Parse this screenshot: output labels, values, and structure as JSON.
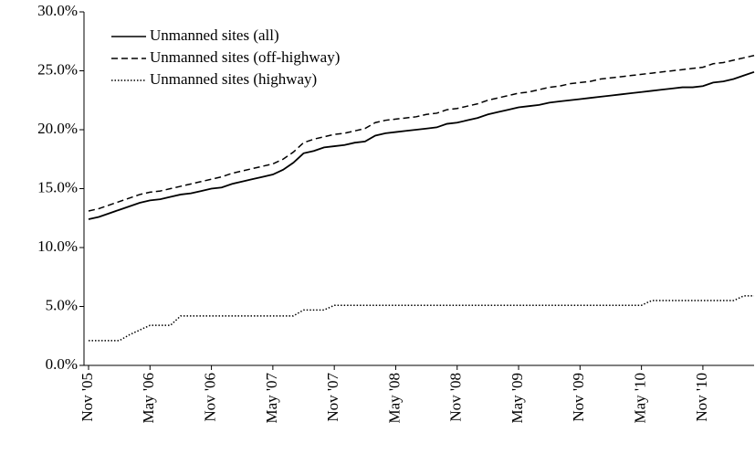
{
  "chart_data": {
    "type": "line",
    "categories": [
      "Nov '05",
      null,
      null,
      null,
      null,
      null,
      "May '06",
      null,
      null,
      null,
      null,
      null,
      "Nov '06",
      null,
      null,
      null,
      null,
      null,
      "May '07",
      null,
      null,
      null,
      null,
      null,
      "Nov '07",
      null,
      null,
      null,
      null,
      null,
      "May '08",
      null,
      null,
      null,
      null,
      null,
      "Nov '08",
      null,
      null,
      null,
      null,
      null,
      "May '09",
      null,
      null,
      null,
      null,
      null,
      "Nov '09",
      null,
      null,
      null,
      null,
      null,
      "May '10",
      null,
      null,
      null,
      null,
      null,
      "Nov '10",
      null,
      null,
      null,
      null,
      null
    ],
    "series": [
      {
        "name": "Unmanned sites (all)",
        "color": "#000000",
        "dash": "solid",
        "values": [
          12.4,
          12.6,
          12.9,
          13.2,
          13.5,
          13.8,
          14.0,
          14.1,
          14.3,
          14.5,
          14.6,
          14.8,
          15.0,
          15.1,
          15.4,
          15.6,
          15.8,
          16.0,
          16.2,
          16.6,
          17.2,
          18.0,
          18.2,
          18.5,
          18.6,
          18.7,
          18.9,
          19.0,
          19.5,
          19.7,
          19.8,
          19.9,
          20.0,
          20.1,
          20.2,
          20.5,
          20.6,
          20.8,
          21.0,
          21.3,
          21.5,
          21.7,
          21.9,
          22.0,
          22.1,
          22.3,
          22.4,
          22.5,
          22.6,
          22.7,
          22.8,
          22.9,
          23.0,
          23.1,
          23.2,
          23.3,
          23.4,
          23.5,
          23.6,
          23.6,
          23.7,
          24.0,
          24.1,
          24.3,
          24.6,
          24.9
        ]
      },
      {
        "name": "Unmanned sites (off-highway)",
        "color": "#000000",
        "dash": "dashed",
        "values": [
          13.1,
          13.3,
          13.6,
          13.9,
          14.2,
          14.5,
          14.7,
          14.8,
          15.0,
          15.2,
          15.4,
          15.6,
          15.8,
          16.0,
          16.3,
          16.5,
          16.7,
          16.9,
          17.1,
          17.5,
          18.1,
          18.9,
          19.2,
          19.4,
          19.6,
          19.7,
          19.9,
          20.1,
          20.6,
          20.8,
          20.9,
          21.0,
          21.1,
          21.3,
          21.4,
          21.7,
          21.8,
          22.0,
          22.2,
          22.5,
          22.7,
          22.9,
          23.1,
          23.2,
          23.4,
          23.6,
          23.7,
          23.9,
          24.0,
          24.1,
          24.3,
          24.4,
          24.5,
          24.6,
          24.7,
          24.8,
          24.9,
          25.0,
          25.1,
          25.2,
          25.3,
          25.6,
          25.7,
          25.9,
          26.1,
          26.3
        ]
      },
      {
        "name": "Unmanned sites (highway)",
        "color": "#000000",
        "dash": "dotted",
        "values": [
          2.1,
          2.1,
          2.1,
          2.1,
          2.6,
          3.0,
          3.4,
          3.4,
          3.4,
          4.2,
          4.2,
          4.2,
          4.2,
          4.2,
          4.2,
          4.2,
          4.2,
          4.2,
          4.2,
          4.2,
          4.2,
          4.7,
          4.7,
          4.7,
          5.1,
          5.1,
          5.1,
          5.1,
          5.1,
          5.1,
          5.1,
          5.1,
          5.1,
          5.1,
          5.1,
          5.1,
          5.1,
          5.1,
          5.1,
          5.1,
          5.1,
          5.1,
          5.1,
          5.1,
          5.1,
          5.1,
          5.1,
          5.1,
          5.1,
          5.1,
          5.1,
          5.1,
          5.1,
          5.1,
          5.1,
          5.5,
          5.5,
          5.5,
          5.5,
          5.5,
          5.5,
          5.5,
          5.5,
          5.5,
          5.9,
          5.9
        ]
      }
    ],
    "ylim": [
      0,
      30
    ],
    "yticks": [
      {
        "value": 0,
        "label": "0.0%"
      },
      {
        "value": 5,
        "label": "5.0%"
      },
      {
        "value": 10,
        "label": "10.0%"
      },
      {
        "value": 15,
        "label": "15.0%"
      },
      {
        "value": 20,
        "label": "20.0%"
      },
      {
        "value": 25,
        "label": "25.0%"
      },
      {
        "value": 30,
        "label": "30.0%"
      }
    ],
    "grid": false,
    "legend": "top-left"
  }
}
